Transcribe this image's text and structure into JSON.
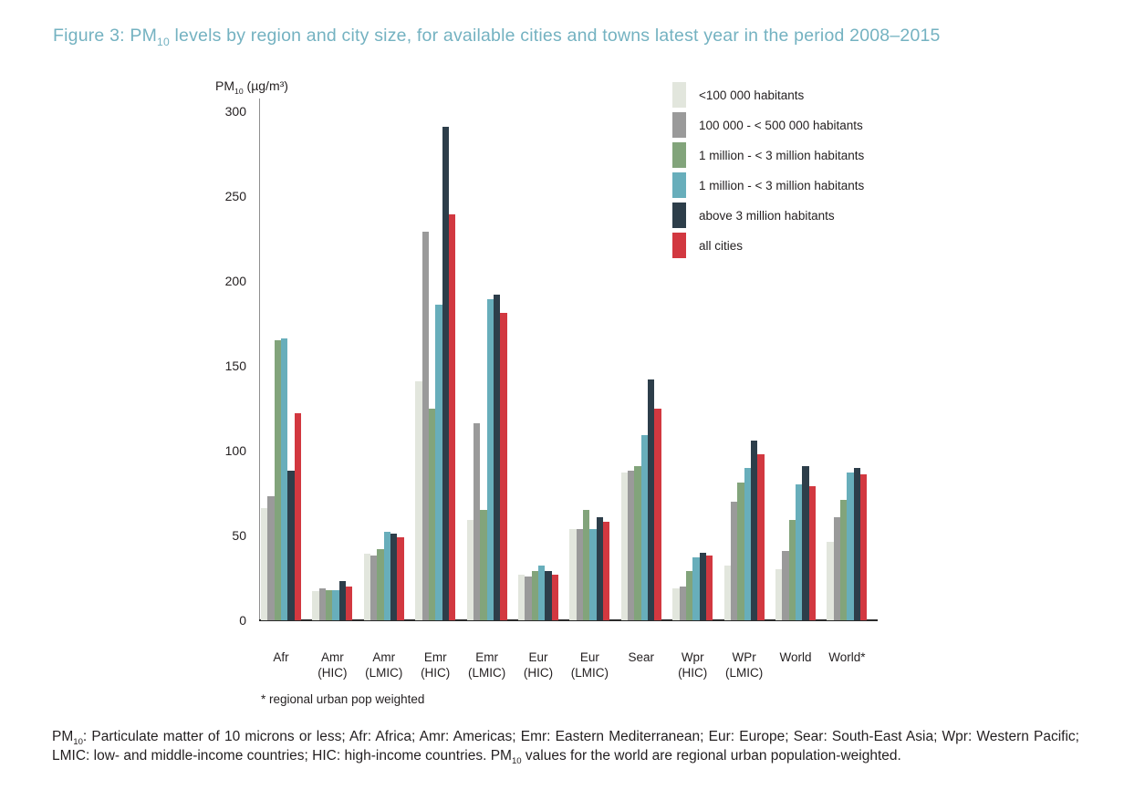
{
  "title_segments": [
    {
      "t": "Figure 3: PM"
    },
    {
      "sub": "10"
    },
    {
      "t": " levels by region and city size, for available cities and towns latest year in the period 2008–2015"
    }
  ],
  "chart": {
    "y_axis_title_segments": [
      {
        "t": "PM"
      },
      {
        "sub": "10"
      },
      {
        "t": " (µg/m³)"
      }
    ],
    "footnote": "* regional urban pop weighted"
  },
  "chart_data": {
    "type": "bar",
    "title": "Figure 3: PM10 levels by region and city size, for available cities and towns latest year in the period 2008–2015",
    "xlabel": "",
    "ylabel": "PM10 (µg/m³)",
    "ylim": [
      0,
      300
    ],
    "yticks": [
      0,
      50,
      100,
      150,
      200,
      250,
      300
    ],
    "grid": false,
    "legend_position": "top-right",
    "categories": [
      "Afr",
      "Amr (HIC)",
      "Amr (LMIC)",
      "Emr (HIC)",
      "Emr (LMIC)",
      "Eur (HIC)",
      "Eur (LMIC)",
      "Sear",
      "Wpr (HIC)",
      "WPr (LMIC)",
      "World",
      "World*"
    ],
    "series": [
      {
        "name": "<100 000 habitants",
        "color": "#e2e6dd",
        "values": [
          66,
          17,
          39,
          141,
          59,
          27,
          54,
          87,
          19,
          32,
          30,
          46
        ]
      },
      {
        "name": "100 000 - < 500 000 habitants",
        "color": "#9a9a9a",
        "values": [
          73,
          19,
          38,
          229,
          116,
          26,
          54,
          88,
          20,
          70,
          41,
          61
        ]
      },
      {
        "name": "1 million - < 3 million habitants",
        "color": "#82a47b",
        "values": [
          165,
          18,
          42,
          125,
          65,
          29,
          65,
          91,
          29,
          81,
          59,
          71
        ]
      },
      {
        "name": "1 million - < 3 million habitants",
        "color": "#68aebb",
        "values": [
          166,
          18,
          52,
          186,
          189,
          32,
          54,
          109,
          37,
          90,
          80,
          87
        ]
      },
      {
        "name": "above 3 million habitants",
        "color": "#2d3e4a",
        "values": [
          88,
          23,
          51,
          291,
          192,
          29,
          61,
          142,
          40,
          106,
          91,
          90
        ]
      },
      {
        "name": "all cities",
        "color": "#d23840",
        "values": [
          122,
          20,
          49,
          239,
          181,
          27,
          58,
          125,
          38,
          98,
          79,
          86
        ]
      }
    ]
  },
  "footer_segments": [
    {
      "t": "PM"
    },
    {
      "sub": "10"
    },
    {
      "t": ": Particulate matter of 10 microns or less; Afr: Africa; Amr: Americas; Emr: Eastern Mediterranean; Eur: Europe; Sear: South-East Asia; Wpr: Western Pacific; LMIC: low- and middle-income countries; HIC: high-income countries. PM"
    },
    {
      "sub": "10"
    },
    {
      "t": " values for the world are regional urban population-weighted."
    }
  ],
  "colors": {
    "title_accent": "#74b2c1",
    "text": "#231f20",
    "axis_line": "#8f8f8f",
    "baseline": "#2a2a2a"
  }
}
